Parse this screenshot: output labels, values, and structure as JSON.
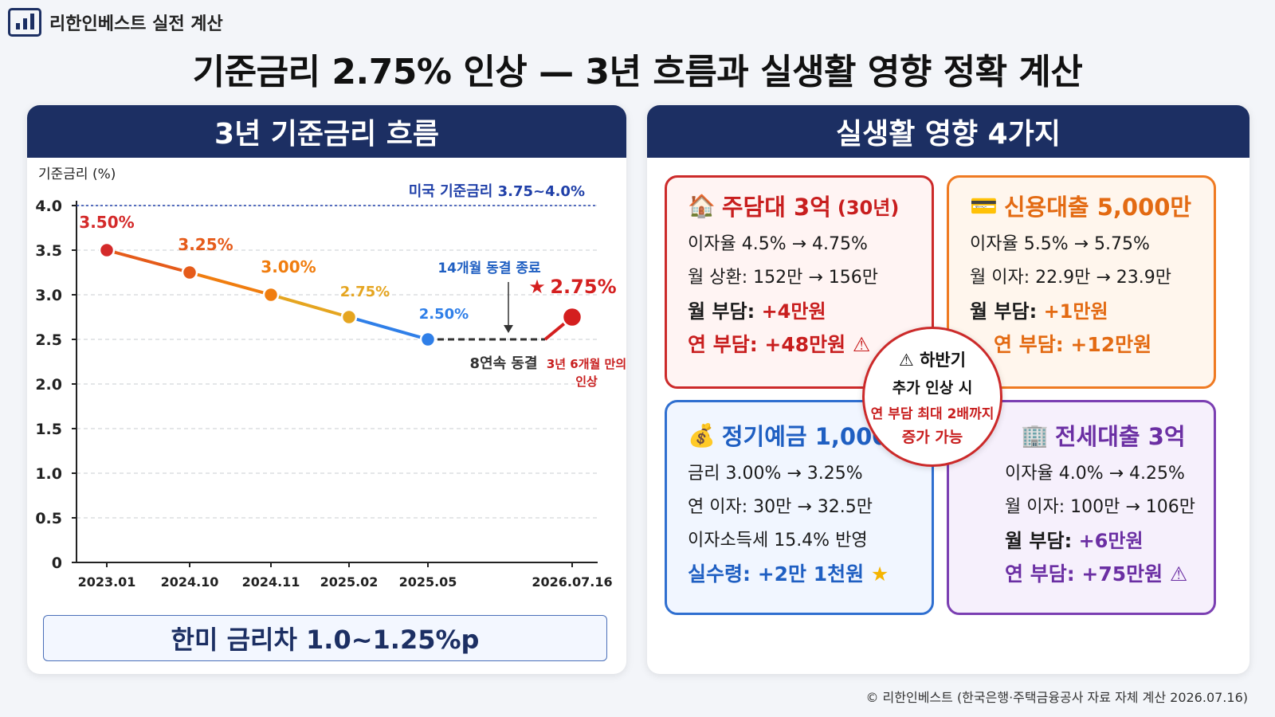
{
  "brand": {
    "name": "리한인베스트 실전 계산",
    "icon": "bar-chart-icon"
  },
  "title": "기준금리 2.75% 인상 — 3년 흐름과 실생활 영향 정확 계산",
  "left": {
    "header": "3년 기준금리 흐름",
    "gap_text": "한미 금리차 1.0~1.25%p"
  },
  "chart_data": {
    "type": "line",
    "ylabel": "기준금리 (%)",
    "xlabel": "",
    "ylim": [
      0,
      4.0
    ],
    "yticks": [
      "0",
      "0.5",
      "1.0",
      "1.5",
      "2.0",
      "2.5",
      "3.0",
      "3.5",
      "4.0"
    ],
    "categories": [
      "2023.01",
      "2024.10",
      "2024.11",
      "2025.02",
      "2025.05",
      "2026.07.16"
    ],
    "series": [
      {
        "values": [
          3.5,
          3.25,
          3.0,
          2.75,
          2.5,
          2.75
        ]
      }
    ],
    "point_labels": [
      "3.50%",
      "3.25%",
      "3.00%",
      "2.75%",
      "2.50%",
      "2.75%"
    ],
    "point_colors": [
      "#d42a2a",
      "#e55b1a",
      "#f07d0f",
      "#e5a520",
      "#2f7fe8",
      "#d41f1f"
    ],
    "reference_line": {
      "label": "미국 기준금리 3.75~4.0%",
      "value": 4.0,
      "color": "#1f3fa8"
    },
    "annotations": {
      "freeze_end": "14개월 동결 종료",
      "freeze": "8연속 동결",
      "hike_line1": "3년 6개월 만의",
      "hike_line2": "인상",
      "star": "★"
    },
    "grid": true
  },
  "right": {
    "header": "실생활 영향 4가지",
    "mortgage": {
      "icon": "house-icon",
      "title": "주담대 3억",
      "sub": "(30년)",
      "line1": "이자율 4.5% → 4.75%",
      "line2": "월 상환: 152만 → 156만",
      "line3_label": "월 부담: ",
      "line3_value": "+4만원",
      "line4": "연 부담: +48만원 ⚠",
      "color": "#c81e1e"
    },
    "credit": {
      "icon": "credit-card-icon",
      "title": "신용대출 5,000만",
      "line1": "이자율 5.5% → 5.75%",
      "line2": "월 이자: 22.9만 → 23.9만",
      "line3_label": "월 부담: ",
      "line3_value": "+1만원",
      "line4": "연 부담: +12만원",
      "color": "#e36a12"
    },
    "deposit": {
      "icon": "money-bag-icon",
      "title": "정기예금 1,000만",
      "line1": "금리 3.00% → 3.25%",
      "line2": "연 이자: 30만 → 32.5만",
      "line3": "이자소득세 15.4% 반영",
      "line4": "실수령: +2만 1천원",
      "line4_icon": "★",
      "color": "#1f5fc2"
    },
    "jeonse": {
      "icon": "building-icon",
      "title": "전세대출 3억",
      "line1": "이자율 4.0% → 4.25%",
      "line2": "월 이자: 100만 → 106만",
      "line3_label": "월 부담: ",
      "line3_value": "+6만원",
      "line4": "연 부담: +75만원 ⚠",
      "color": "#6b2fa3"
    },
    "warning": {
      "icon": "warning-icon",
      "line1": "⚠ 하반기",
      "line2": "추가 인상 시",
      "line3": "연 부담 최대 2배까지",
      "line4": "증가 가능"
    }
  },
  "footer": "© 리한인베스트 (한국은행·주택금융공사 자료 자체 계산 2026.07.16)"
}
